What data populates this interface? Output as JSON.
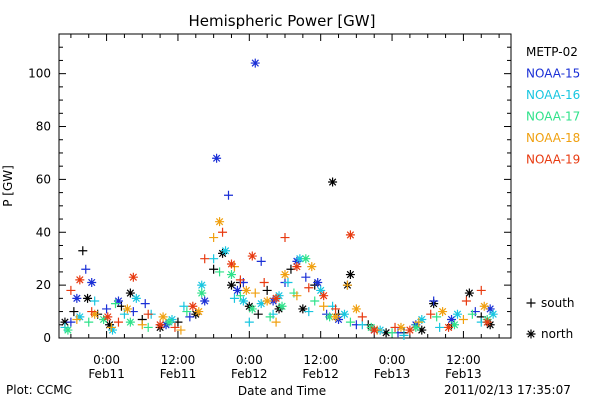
{
  "chart_data": {
    "type": "scatter",
    "title": "Hemispheric Power [GW]",
    "xlabel": "Date and Time",
    "ylabel": "P [GW]",
    "xlim_hours": [
      -8,
      68
    ],
    "ylim": [
      0,
      115
    ],
    "yticks": [
      0,
      20,
      40,
      60,
      80,
      100
    ],
    "yminor_step": 5,
    "xticks": [
      {
        "h": 0,
        "top": "0:00",
        "bottom": "Feb11"
      },
      {
        "h": 12,
        "top": "12:00",
        "bottom": "Feb11"
      },
      {
        "h": 24,
        "top": "0:00",
        "bottom": "Feb12"
      },
      {
        "h": 36,
        "top": "12:00",
        "bottom": "Feb12"
      },
      {
        "h": 48,
        "top": "0:00",
        "bottom": "Feb13"
      },
      {
        "h": 60,
        "top": "12:00",
        "bottom": "Feb13"
      }
    ],
    "xminor_step_hours": 3,
    "legend": {
      "placement": "right",
      "entries": [
        {
          "name": "METP-02",
          "color": "#000000"
        },
        {
          "name": "NOAA-15",
          "color": "#1a2fd6"
        },
        {
          "name": "NOAA-16",
          "color": "#18c6e0"
        },
        {
          "name": "NOAA-17",
          "color": "#2fe28a"
        },
        {
          "name": "NOAA-18",
          "color": "#f0a010"
        },
        {
          "name": "NOAA-19",
          "color": "#e83a10"
        }
      ],
      "markers": [
        {
          "symbol": "+",
          "label": "south"
        },
        {
          "symbol": "*",
          "label": "north"
        }
      ]
    },
    "series": [
      {
        "name": "METP-02",
        "points": [
          [
            -7.0,
            6,
            "*"
          ],
          [
            -5.5,
            10,
            "+"
          ],
          [
            -4.0,
            33,
            "+"
          ],
          [
            -3.2,
            15,
            "*"
          ],
          [
            -1.5,
            9,
            "+"
          ],
          [
            0.5,
            5,
            "*"
          ],
          [
            2.5,
            12,
            "+"
          ],
          [
            4.0,
            17,
            "*"
          ],
          [
            6.0,
            7,
            "+"
          ],
          [
            9.0,
            4,
            "*"
          ],
          [
            12.0,
            6,
            "+"
          ],
          [
            15.0,
            9,
            "*"
          ],
          [
            18.0,
            26,
            "+"
          ],
          [
            19.5,
            32,
            "*"
          ],
          [
            21.0,
            20,
            "*"
          ],
          [
            22.5,
            21,
            "+"
          ],
          [
            24.0,
            12,
            "*"
          ],
          [
            25.5,
            9,
            "+"
          ],
          [
            27.0,
            18,
            "+"
          ],
          [
            29.0,
            11,
            "*"
          ],
          [
            31.0,
            26,
            "+"
          ],
          [
            33.0,
            11,
            "*"
          ],
          [
            35.0,
            20,
            "+"
          ],
          [
            38.0,
            59,
            "*"
          ],
          [
            39.0,
            9,
            "+"
          ],
          [
            40.5,
            20,
            "*"
          ],
          [
            41.0,
            24,
            "*"
          ],
          [
            44.0,
            5,
            "+"
          ],
          [
            47.0,
            2,
            "*"
          ],
          [
            50.0,
            2,
            "+"
          ],
          [
            53.0,
            3,
            "*"
          ],
          [
            55.0,
            13,
            "*"
          ],
          [
            58.0,
            5,
            "+"
          ],
          [
            61.0,
            17,
            "*"
          ],
          [
            63.0,
            8,
            "+"
          ],
          [
            64.5,
            5,
            "*"
          ]
        ]
      },
      {
        "name": "NOAA-15",
        "points": [
          [
            -6.0,
            6,
            "+"
          ],
          [
            -5.0,
            15,
            "*"
          ],
          [
            -3.5,
            26,
            "+"
          ],
          [
            -2.5,
            21,
            "*"
          ],
          [
            0.0,
            11,
            "+"
          ],
          [
            2.0,
            14,
            "*"
          ],
          [
            4.5,
            10,
            "+"
          ],
          [
            6.5,
            13,
            "+"
          ],
          [
            10.0,
            5,
            "*"
          ],
          [
            14.0,
            8,
            "+"
          ],
          [
            16.5,
            14,
            "*"
          ],
          [
            18.5,
            68,
            "*"
          ],
          [
            20.5,
            54,
            "+"
          ],
          [
            22.0,
            18,
            "*"
          ],
          [
            23.0,
            21,
            "+"
          ],
          [
            25.0,
            104,
            "*"
          ],
          [
            26.0,
            29,
            "+"
          ],
          [
            28.0,
            14,
            "*"
          ],
          [
            30.0,
            21,
            "+"
          ],
          [
            32.0,
            29,
            "*"
          ],
          [
            33.5,
            23,
            "+"
          ],
          [
            35.5,
            21,
            "*"
          ],
          [
            37.0,
            9,
            "+"
          ],
          [
            39.0,
            7,
            "*"
          ],
          [
            42.0,
            5,
            "+"
          ],
          [
            45.0,
            3,
            "*"
          ],
          [
            49.0,
            2,
            "+"
          ],
          [
            52.0,
            5,
            "*"
          ],
          [
            55.0,
            14,
            "+"
          ],
          [
            58.0,
            7,
            "*"
          ],
          [
            62.0,
            10,
            "+"
          ],
          [
            64.5,
            11,
            "*"
          ]
        ]
      },
      {
        "name": "NOAA-16",
        "points": [
          [
            -7.0,
            4,
            "+"
          ],
          [
            -4.5,
            8,
            "*"
          ],
          [
            -2.0,
            14,
            "+"
          ],
          [
            1.0,
            3,
            "*"
          ],
          [
            3.0,
            9,
            "+"
          ],
          [
            5.0,
            15,
            "*"
          ],
          [
            7.5,
            9,
            "+"
          ],
          [
            11.0,
            7,
            "*"
          ],
          [
            13.0,
            12,
            "+"
          ],
          [
            16.0,
            20,
            "*"
          ],
          [
            18.0,
            30,
            "+"
          ],
          [
            20.0,
            33,
            "*"
          ],
          [
            21.5,
            15,
            "+"
          ],
          [
            23.0,
            14,
            "*"
          ],
          [
            24.0,
            6,
            "+"
          ],
          [
            26.0,
            13,
            "*"
          ],
          [
            28.0,
            9,
            "+"
          ],
          [
            29.0,
            16,
            "*"
          ],
          [
            30.5,
            21,
            "+"
          ],
          [
            32.5,
            30,
            "*"
          ],
          [
            34.0,
            10,
            "+"
          ],
          [
            36.0,
            18,
            "*"
          ],
          [
            38.0,
            12,
            "+"
          ],
          [
            40.0,
            9,
            "*"
          ],
          [
            43.0,
            5,
            "+"
          ],
          [
            46.0,
            3,
            "*"
          ],
          [
            50.0,
            1,
            "+"
          ],
          [
            53.0,
            7,
            "*"
          ],
          [
            56.0,
            4,
            "+"
          ],
          [
            59.0,
            9,
            "*"
          ],
          [
            63.0,
            6,
            "+"
          ],
          [
            65.0,
            9,
            "*"
          ]
        ]
      },
      {
        "name": "NOAA-17",
        "points": [
          [
            -6.5,
            3,
            "*"
          ],
          [
            -3.0,
            6,
            "+"
          ],
          [
            -0.5,
            7,
            "*"
          ],
          [
            1.5,
            13,
            "+"
          ],
          [
            4.0,
            6,
            "*"
          ],
          [
            7.0,
            4,
            "+"
          ],
          [
            10.5,
            6,
            "*"
          ],
          [
            13.5,
            10,
            "+"
          ],
          [
            16.0,
            17,
            "*"
          ],
          [
            19.0,
            25,
            "+"
          ],
          [
            21.0,
            24,
            "*"
          ],
          [
            22.5,
            16,
            "+"
          ],
          [
            24.5,
            11,
            "*"
          ],
          [
            27.5,
            8,
            "+"
          ],
          [
            29.5,
            12,
            "*"
          ],
          [
            31.5,
            17,
            "+"
          ],
          [
            33.5,
            30,
            "*"
          ],
          [
            35.0,
            14,
            "+"
          ],
          [
            37.5,
            8,
            "*"
          ],
          [
            41.0,
            6,
            "+"
          ],
          [
            44.5,
            4,
            "*"
          ],
          [
            48.0,
            2,
            "+"
          ],
          [
            52.0,
            4,
            "*"
          ],
          [
            55.5,
            8,
            "+"
          ],
          [
            58.5,
            5,
            "*"
          ],
          [
            61.5,
            9,
            "+"
          ],
          [
            64.0,
            7,
            "*"
          ]
        ]
      },
      {
        "name": "NOAA-18",
        "points": [
          [
            -5.0,
            7,
            "+"
          ],
          [
            -2.0,
            9,
            "*"
          ],
          [
            0.8,
            4,
            "+"
          ],
          [
            3.5,
            11,
            "*"
          ],
          [
            6.0,
            5,
            "+"
          ],
          [
            9.5,
            8,
            "*"
          ],
          [
            12.5,
            3,
            "+"
          ],
          [
            15.5,
            10,
            "*"
          ],
          [
            18.0,
            38,
            "+"
          ],
          [
            19.0,
            44,
            "*"
          ],
          [
            21.5,
            27,
            "+"
          ],
          [
            23.5,
            18,
            "*"
          ],
          [
            25.0,
            17,
            "+"
          ],
          [
            27.0,
            14,
            "*"
          ],
          [
            28.5,
            6,
            "+"
          ],
          [
            30.0,
            24,
            "*"
          ],
          [
            32.0,
            16,
            "+"
          ],
          [
            34.5,
            27,
            "*"
          ],
          [
            36.5,
            12,
            "+"
          ],
          [
            38.5,
            8,
            "*"
          ],
          [
            40.5,
            20,
            "+"
          ],
          [
            42.0,
            11,
            "*"
          ],
          [
            45.5,
            3,
            "+"
          ],
          [
            49.5,
            4,
            "*"
          ],
          [
            52.5,
            6,
            "+"
          ],
          [
            56.5,
            10,
            "*"
          ],
          [
            60.0,
            7,
            "+"
          ],
          [
            63.5,
            12,
            "*"
          ]
        ]
      },
      {
        "name": "NOAA-19",
        "points": [
          [
            -6.0,
            18,
            "+"
          ],
          [
            -4.5,
            22,
            "*"
          ],
          [
            -2.5,
            10,
            "+"
          ],
          [
            0.2,
            8,
            "*"
          ],
          [
            2.0,
            6,
            "+"
          ],
          [
            4.5,
            23,
            "*"
          ],
          [
            7.0,
            9,
            "+"
          ],
          [
            9.0,
            5,
            "*"
          ],
          [
            11.5,
            4,
            "+"
          ],
          [
            14.5,
            12,
            "*"
          ],
          [
            16.5,
            30,
            "+"
          ],
          [
            19.5,
            40,
            "+"
          ],
          [
            21.0,
            28,
            "*"
          ],
          [
            22.5,
            22,
            "+"
          ],
          [
            24.5,
            31,
            "*"
          ],
          [
            26.5,
            21,
            "+"
          ],
          [
            28.5,
            15,
            "*"
          ],
          [
            30.0,
            38,
            "+"
          ],
          [
            32.0,
            27,
            "*"
          ],
          [
            34.0,
            19,
            "+"
          ],
          [
            36.5,
            16,
            "*"
          ],
          [
            38.5,
            11,
            "+"
          ],
          [
            41.0,
            39,
            "*"
          ],
          [
            43.0,
            8,
            "+"
          ],
          [
            45.0,
            3,
            "*"
          ],
          [
            48.5,
            4,
            "+"
          ],
          [
            51.0,
            3,
            "*"
          ],
          [
            54.5,
            9,
            "+"
          ],
          [
            57.5,
            4,
            "*"
          ],
          [
            60.5,
            14,
            "+"
          ],
          [
            63.0,
            18,
            "+"
          ],
          [
            64.0,
            6,
            "*"
          ]
        ]
      }
    ]
  },
  "footer": {
    "left": "Plot: CCMC",
    "right": "2011/02/13 17:35:07"
  }
}
